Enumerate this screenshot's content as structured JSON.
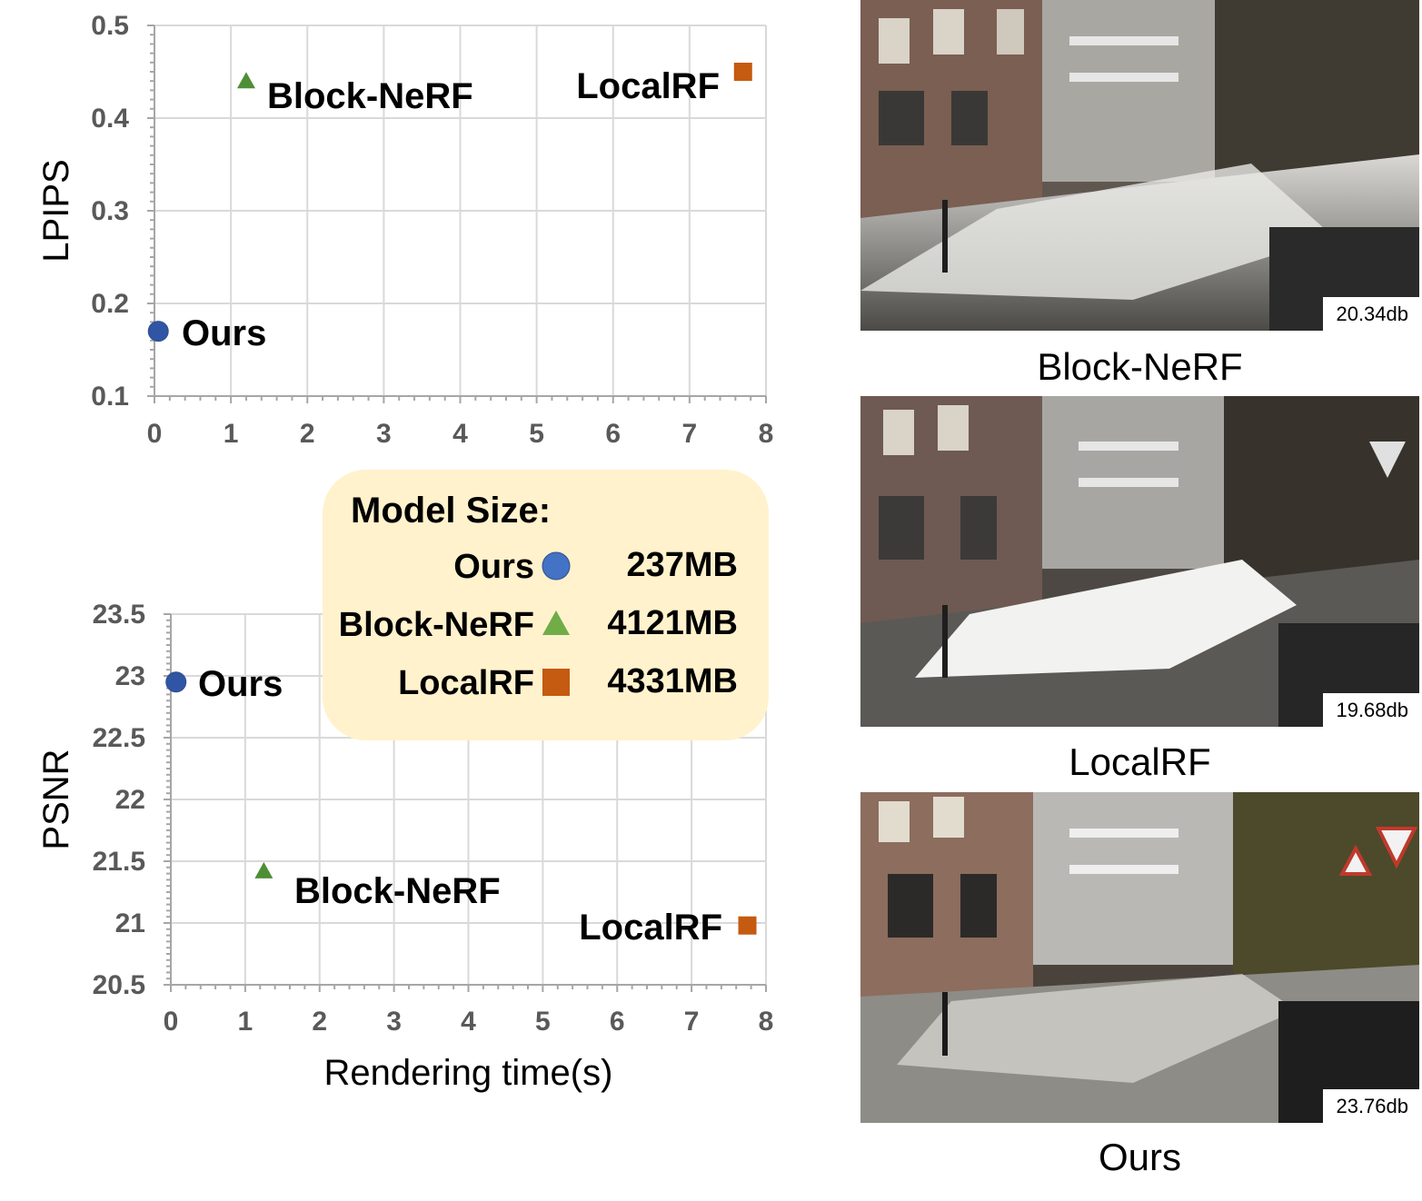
{
  "chart_data": [
    {
      "type": "scatter",
      "xlabel": "",
      "ylabel": "LPIPS",
      "xlim": [
        0,
        8
      ],
      "ylim": [
        0.1,
        0.5
      ],
      "xticks": [
        "0",
        "1",
        "2",
        "3",
        "4",
        "5",
        "6",
        "7",
        "8"
      ],
      "yticks": [
        "0.1",
        "0.2",
        "0.3",
        "0.4",
        "0.5"
      ],
      "grid": true,
      "series": [
        {
          "name": "Ours",
          "marker": "circle",
          "color": "#2f55a4",
          "x": 0.05,
          "y": 0.17
        },
        {
          "name": "Block-NeRF",
          "marker": "triangle",
          "color": "#4e8f36",
          "x": 1.2,
          "y": 0.44
        },
        {
          "name": "LocalRF",
          "marker": "square",
          "color": "#c55a11",
          "x": 7.7,
          "y": 0.45
        }
      ]
    },
    {
      "type": "scatter",
      "xlabel": "Rendering time(s)",
      "ylabel": "PSNR",
      "xlim": [
        0,
        8
      ],
      "ylim": [
        20.5,
        23.5
      ],
      "xticks": [
        "0",
        "1",
        "2",
        "3",
        "4",
        "5",
        "6",
        "7",
        "8"
      ],
      "yticks": [
        "20.5",
        "21",
        "21.5",
        "22",
        "22.5",
        "23",
        "23.5"
      ],
      "grid": true,
      "series": [
        {
          "name": "Ours",
          "marker": "circle",
          "color": "#2f55a4",
          "x": 0.07,
          "y": 22.95
        },
        {
          "name": "Block-NeRF",
          "marker": "triangle",
          "color": "#4e8f36",
          "x": 1.25,
          "y": 21.42
        },
        {
          "name": "LocalRF",
          "marker": "square",
          "color": "#c55a11",
          "x": 7.75,
          "y": 20.98
        }
      ]
    }
  ],
  "legend": {
    "title": "Model Size:",
    "entries": [
      {
        "name": "Ours",
        "marker": "circle",
        "color": "#4472c4",
        "size": "237MB"
      },
      {
        "name": "Block-NeRF",
        "marker": "triangle",
        "color": "#70ad47",
        "size": "4121MB"
      },
      {
        "name": "LocalRF",
        "marker": "square",
        "color": "#c55a11",
        "size": "4331MB"
      }
    ]
  },
  "photos": [
    {
      "psnr": "20.34db",
      "caption": "Block-NeRF"
    },
    {
      "psnr": "19.68db",
      "caption": "LocalRF"
    },
    {
      "psnr": "23.76db",
      "caption": "Ours"
    }
  ]
}
